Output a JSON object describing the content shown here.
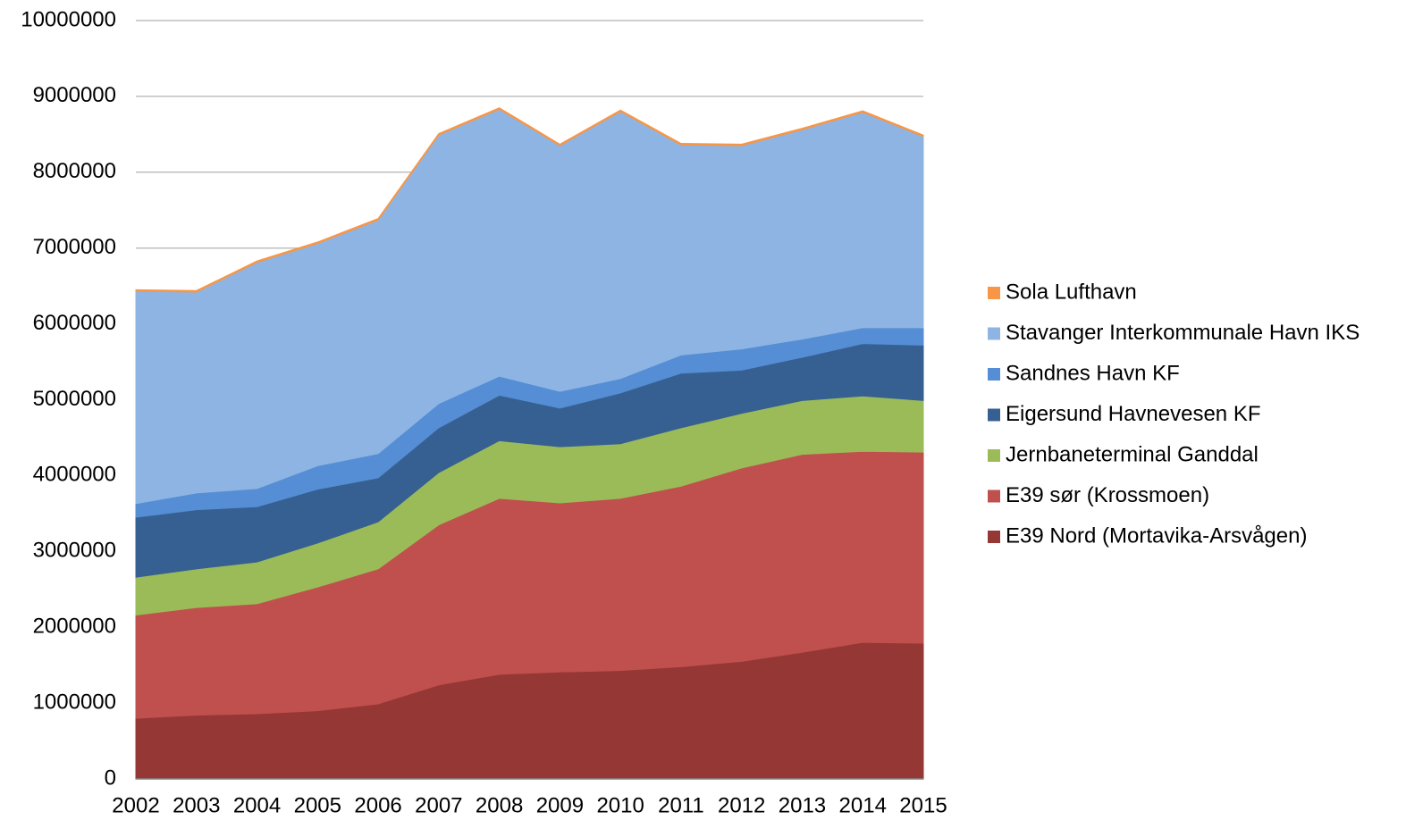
{
  "chart_data": {
    "type": "stacked-area",
    "categories": [
      "2002",
      "2003",
      "2004",
      "2005",
      "2006",
      "2007",
      "2008",
      "2009",
      "2010",
      "2011",
      "2012",
      "2013",
      "2014",
      "2015"
    ],
    "series": [
      {
        "name": "E39 Nord (Mortavika-Arsvågen)",
        "color": "#953735",
        "values": [
          800000,
          840000,
          860000,
          900000,
          990000,
          1240000,
          1380000,
          1410000,
          1430000,
          1480000,
          1550000,
          1670000,
          1800000,
          1790000
        ]
      },
      {
        "name": "E39 sør (Krossmoen)",
        "color": "#c0504d",
        "values": [
          1360000,
          1420000,
          1450000,
          1630000,
          1780000,
          2110000,
          2320000,
          2230000,
          2270000,
          2380000,
          2550000,
          2610000,
          2520000,
          2520000
        ]
      },
      {
        "name": "Jernbaneterminal Ganddal",
        "color": "#9bbb59",
        "values": [
          500000,
          510000,
          550000,
          580000,
          620000,
          690000,
          760000,
          740000,
          720000,
          770000,
          720000,
          710000,
          730000,
          680000
        ]
      },
      {
        "name": "Eigersund Havnevesen KF",
        "color": "#376092",
        "values": [
          790000,
          780000,
          730000,
          710000,
          580000,
          590000,
          600000,
          510000,
          670000,
          720000,
          570000,
          570000,
          690000,
          730000
        ]
      },
      {
        "name": "Sandnes Havn KF",
        "color": "#558ed5",
        "values": [
          180000,
          220000,
          240000,
          310000,
          320000,
          320000,
          250000,
          220000,
          190000,
          240000,
          280000,
          240000,
          210000,
          230000
        ]
      },
      {
        "name": "Stavanger Interkommunale Havn IKS",
        "color": "#8eb4e3",
        "values": [
          2800000,
          2650000,
          2980000,
          2930000,
          3080000,
          3540000,
          3520000,
          3240000,
          3520000,
          2770000,
          2680000,
          2760000,
          2840000,
          2520000
        ]
      },
      {
        "name": "Sola Lufthavn",
        "color": "#f79646",
        "values": [
          20000,
          20000,
          20000,
          20000,
          20000,
          20000,
          20000,
          20000,
          20000,
          20000,
          20000,
          20000,
          20000,
          20000
        ]
      }
    ],
    "ylim": [
      0,
      10000000
    ],
    "yticks": [
      0,
      1000000,
      2000000,
      3000000,
      4000000,
      5000000,
      6000000,
      7000000,
      8000000,
      9000000,
      10000000
    ],
    "grid": true,
    "legend": "right"
  }
}
